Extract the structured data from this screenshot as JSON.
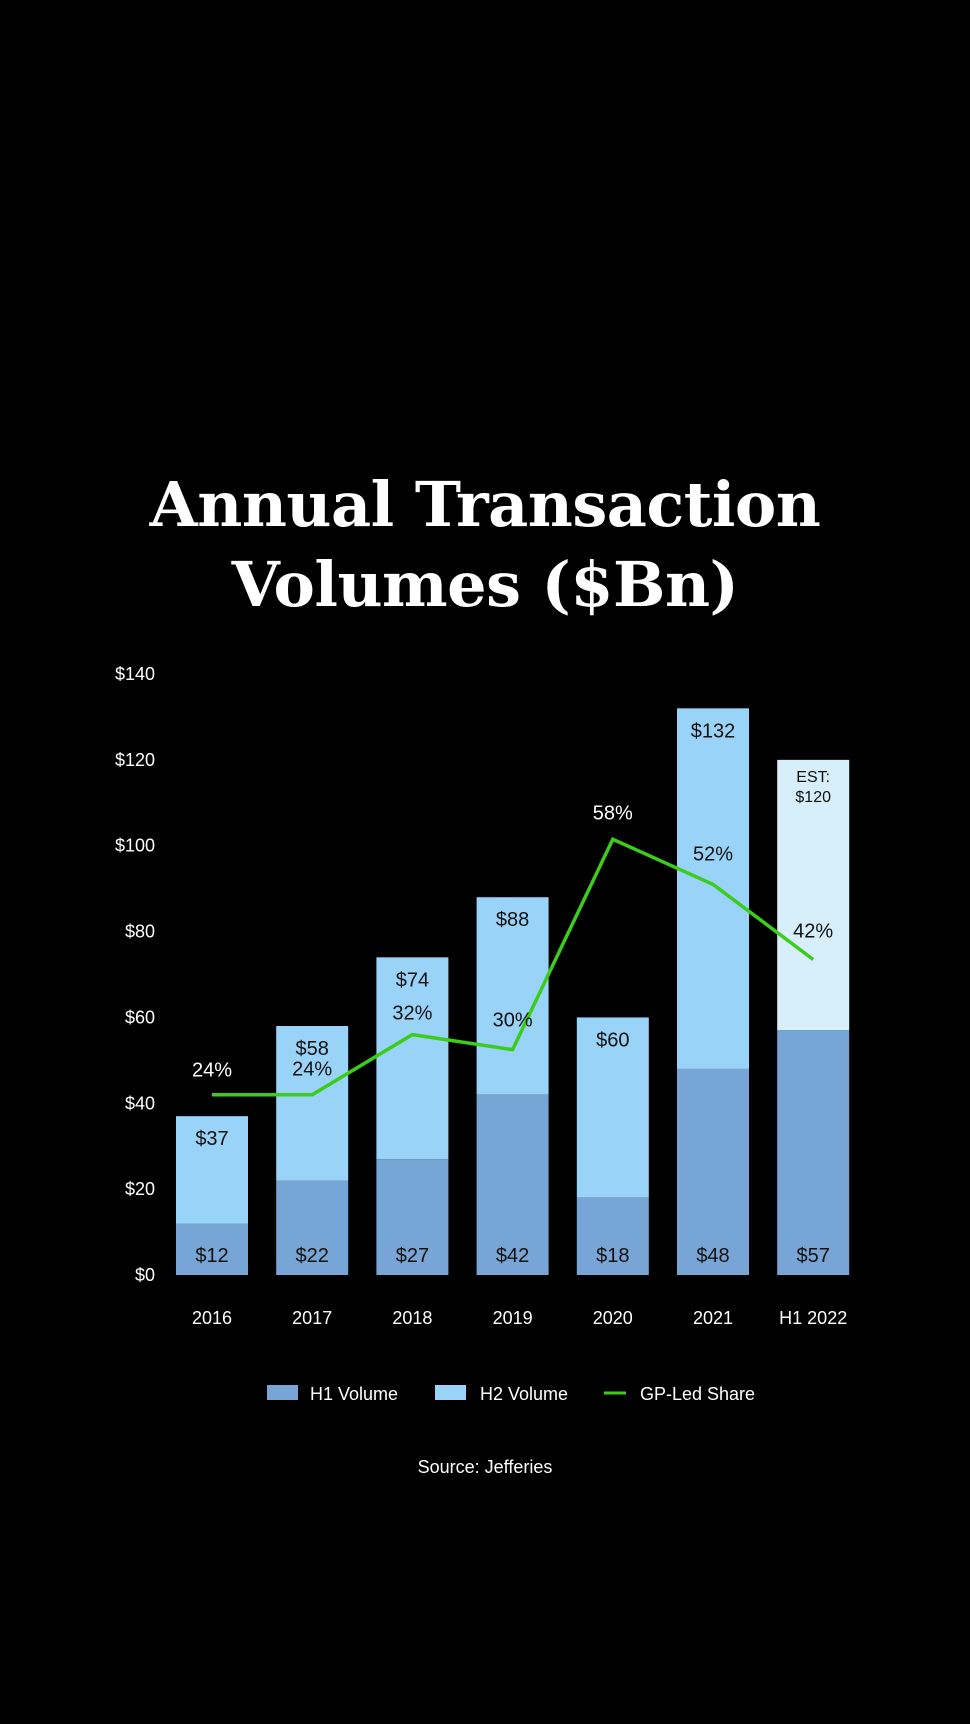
{
  "chart_data": {
    "type": "bar",
    "title_lines": [
      "Annual Transaction",
      "Volumes ($Bn)"
    ],
    "categories": [
      "2016",
      "2017",
      "2018",
      "2019",
      "2020",
      "2021",
      "H1 2022"
    ],
    "ylim": [
      0,
      140
    ],
    "yticks": [
      0,
      20,
      40,
      60,
      80,
      100,
      120,
      140
    ],
    "ytick_labels": [
      "$0",
      "$20",
      "$40",
      "$60",
      "$80",
      "$100",
      "$120",
      "$140"
    ],
    "grid": false,
    "legend_position": "bottom",
    "series": [
      {
        "name": "H1 Volume",
        "type": "bar",
        "color": "#77a5d6",
        "values": [
          12,
          22,
          27,
          42,
          18,
          48,
          57
        ],
        "labels": [
          "$12",
          "$22",
          "$27",
          "$42",
          "$18",
          "$48",
          "$57"
        ]
      },
      {
        "name": "H2 Volume",
        "type": "bar",
        "color": "#9ad3f8",
        "estimate_color": "#d6effa",
        "totals": [
          37,
          58,
          74,
          88,
          60,
          132,
          120
        ],
        "labels": [
          "$37",
          "$58",
          "$74",
          "$88",
          "$60",
          "$132",
          ""
        ],
        "estimate_label": [
          "EST:",
          "$120"
        ]
      },
      {
        "name": "GP-Led Share",
        "type": "line",
        "color": "#3ccc1a",
        "values": [
          24,
          24,
          32,
          30,
          58,
          52,
          42
        ],
        "labels": [
          "24%",
          "24%",
          "32%",
          "30%",
          "58%",
          "52%",
          "42%"
        ]
      }
    ],
    "source": "Source: Jefferies"
  }
}
